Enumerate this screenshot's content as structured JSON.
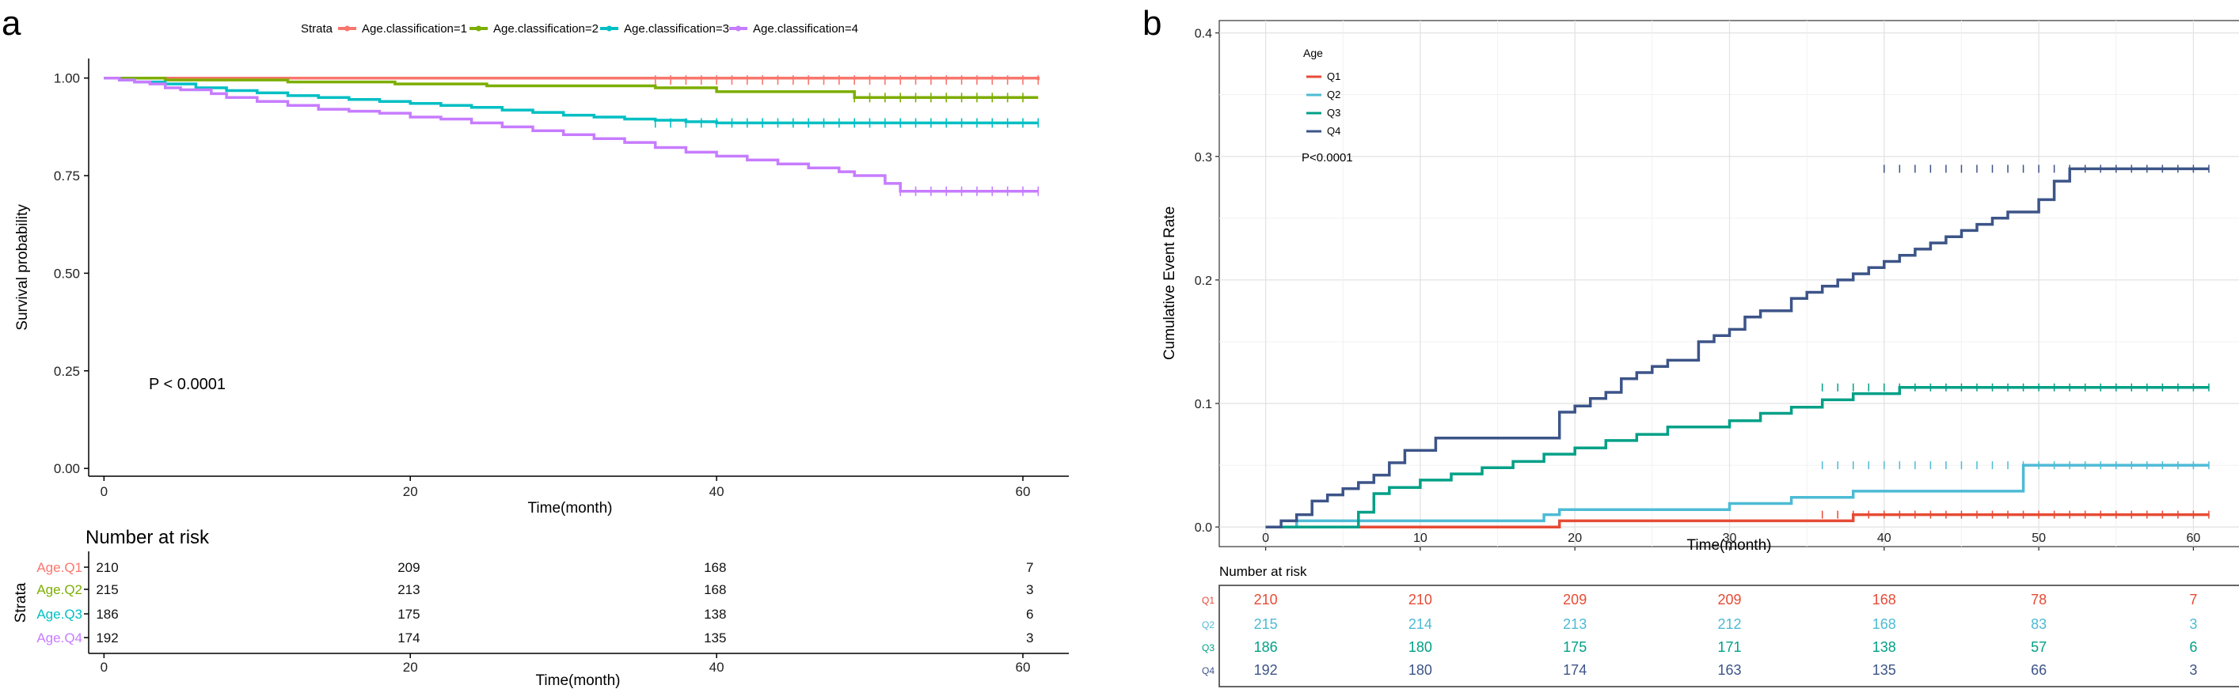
{
  "panels": [
    {
      "id": "a",
      "panel_label": "a",
      "legend_title": "Strata",
      "pvalue": "P < 0.0001",
      "xlabel": "Time(month)",
      "ylabel": "Survival probability",
      "risk_title": "Number at risk",
      "risk_xlabel": "Time(month)",
      "risk_ylabel": "Strata",
      "colors": [
        "#F8766D",
        "#7CAE00",
        "#00BFC4",
        "#C77CFF"
      ]
    },
    {
      "id": "b",
      "panel_label": "b",
      "legend_title": "Age",
      "pvalue": "P<0.0001",
      "xlabel": "Time(month)",
      "ylabel": "Cumulative Event Rate",
      "risk_title": "Number at risk",
      "colors": [
        "#E64B35",
        "#4DBBD5",
        "#00A087",
        "#3C5488"
      ]
    }
  ],
  "chart_data": [
    {
      "type": "line",
      "subtype": "kaplan-meier-survival",
      "title": "",
      "xlabel": "Time(month)",
      "ylabel": "Survival probability",
      "xlim": [
        -1,
        63
      ],
      "ylim": [
        -0.02,
        1.05
      ],
      "x_ticks": [
        0,
        20,
        40,
        60
      ],
      "y_ticks": [
        0.0,
        0.25,
        0.5,
        0.75,
        1.0
      ],
      "y_tick_labels": [
        "0.00",
        "0.25",
        "0.50",
        "0.75",
        "1.00"
      ],
      "legend_entries": [
        "Age.classification=1",
        "Age.classification=2",
        "Age.classification=3",
        "Age.classification=4"
      ],
      "legend_position": "top",
      "annotation": "P < 0.0001",
      "series": [
        {
          "name": "Age.classification=1",
          "t": [
            0,
            61
          ],
          "v": [
            1.0,
            0.995
          ],
          "censor_from": 36,
          "censor_to": 61
        },
        {
          "name": "Age.classification=2",
          "t": [
            0,
            4,
            12,
            19,
            25,
            36,
            40,
            49,
            61
          ],
          "v": [
            1.0,
            0.995,
            0.99,
            0.985,
            0.98,
            0.975,
            0.965,
            0.95,
            0.95
          ],
          "censor_from": 49,
          "censor_to": 60
        },
        {
          "name": "Age.classification=3",
          "t": [
            0,
            1,
            2,
            4,
            6,
            8,
            10,
            12,
            14,
            16,
            18,
            20,
            22,
            24,
            26,
            28,
            30,
            32,
            34,
            36,
            38,
            40,
            61
          ],
          "v": [
            1.0,
            0.995,
            0.99,
            0.985,
            0.975,
            0.968,
            0.962,
            0.955,
            0.95,
            0.945,
            0.94,
            0.935,
            0.93,
            0.925,
            0.918,
            0.912,
            0.905,
            0.9,
            0.895,
            0.892,
            0.888,
            0.885,
            0.885
          ],
          "censor_from": 36,
          "censor_to": 61
        },
        {
          "name": "Age.classification=4",
          "t": [
            0,
            1,
            2,
            3,
            4,
            5,
            7,
            8,
            10,
            12,
            14,
            16,
            18,
            20,
            22,
            24,
            26,
            28,
            30,
            32,
            34,
            36,
            38,
            40,
            42,
            44,
            46,
            48,
            49,
            51,
            52,
            61
          ],
          "v": [
            1.0,
            0.995,
            0.99,
            0.985,
            0.975,
            0.97,
            0.96,
            0.95,
            0.94,
            0.93,
            0.92,
            0.915,
            0.91,
            0.9,
            0.895,
            0.885,
            0.875,
            0.865,
            0.855,
            0.845,
            0.835,
            0.822,
            0.81,
            0.8,
            0.79,
            0.78,
            0.77,
            0.76,
            0.75,
            0.73,
            0.71,
            0.71
          ],
          "censor_from": 52,
          "censor_to": 61
        }
      ],
      "risk_table": {
        "title": "Number at risk",
        "xlabel": "Time(month)",
        "ylabel": "Strata",
        "times": [
          0,
          20,
          40,
          60
        ],
        "groups": [
          "Age.Q1",
          "Age.Q2",
          "Age.Q3",
          "Age.Q4"
        ],
        "values": [
          [
            "210",
            "209",
            "168",
            "7"
          ],
          [
            "215",
            "213",
            "168",
            "3"
          ],
          [
            "186",
            "175",
            "138",
            "6"
          ],
          [
            "192",
            "174",
            "135",
            "3"
          ]
        ]
      }
    },
    {
      "type": "line",
      "subtype": "cumulative-event-rate",
      "title": "",
      "xlabel": "Time(month)",
      "ylabel": "Cumulative Event Rate",
      "xlim": [
        -3,
        63
      ],
      "ylim": [
        -0.005,
        0.41
      ],
      "x_ticks": [
        0,
        10,
        20,
        30,
        40,
        50,
        60
      ],
      "y_ticks": [
        0.0,
        0.1,
        0.2,
        0.3,
        0.4
      ],
      "y_tick_labels": [
        "0.0",
        "0.1",
        "0.2",
        "0.3",
        "0.4"
      ],
      "legend_title": "Age",
      "legend_entries": [
        "Q1",
        "Q2",
        "Q3",
        "Q4"
      ],
      "legend_position": "top-left",
      "annotation": "P<0.0001",
      "series": [
        {
          "name": "Q1",
          "t": [
            0,
            5,
            19,
            38,
            61
          ],
          "v": [
            0.0,
            0.0,
            0.005,
            0.01,
            0.01
          ],
          "censor_from": 36,
          "censor_to": 61
        },
        {
          "name": "Q2",
          "t": [
            0,
            2,
            4,
            10,
            18,
            19,
            20,
            24,
            30,
            34,
            36,
            38,
            40,
            49,
            61
          ],
          "v": [
            0.0,
            0.005,
            0.005,
            0.005,
            0.01,
            0.014,
            0.014,
            0.014,
            0.019,
            0.024,
            0.024,
            0.029,
            0.029,
            0.05,
            0.05
          ],
          "censor_from": 36,
          "censor_to": 61
        },
        {
          "name": "Q3",
          "t": [
            0,
            6,
            7,
            8,
            10,
            12,
            14,
            16,
            18,
            20,
            22,
            24,
            26,
            28,
            30,
            32,
            34,
            36,
            38,
            41,
            61
          ],
          "v": [
            0.0,
            0.012,
            0.027,
            0.032,
            0.038,
            0.043,
            0.048,
            0.053,
            0.059,
            0.064,
            0.07,
            0.075,
            0.081,
            0.081,
            0.086,
            0.092,
            0.097,
            0.103,
            0.108,
            0.113,
            0.113
          ],
          "censor_from": 36,
          "censor_to": 61
        },
        {
          "name": "Q4",
          "t": [
            0,
            1,
            2,
            3,
            4,
            5,
            6,
            7,
            8,
            9,
            10,
            11,
            19,
            20,
            21,
            22,
            23,
            24,
            25,
            26,
            28,
            29,
            30,
            31,
            32,
            34,
            35,
            36,
            37,
            38,
            39,
            40,
            41,
            42,
            43,
            44,
            45,
            46,
            47,
            48,
            50,
            51,
            52,
            61
          ],
          "v": [
            0.0,
            0.005,
            0.01,
            0.021,
            0.026,
            0.031,
            0.036,
            0.042,
            0.052,
            0.062,
            0.062,
            0.072,
            0.093,
            0.098,
            0.104,
            0.109,
            0.12,
            0.125,
            0.13,
            0.135,
            0.15,
            0.155,
            0.16,
            0.17,
            0.175,
            0.185,
            0.19,
            0.195,
            0.2,
            0.205,
            0.21,
            0.215,
            0.22,
            0.225,
            0.23,
            0.235,
            0.24,
            0.245,
            0.25,
            0.255,
            0.265,
            0.28,
            0.29,
            0.29
          ],
          "censor_from": 40,
          "censor_to": 61
        }
      ],
      "risk_table": {
        "title": "Number at risk",
        "times": [
          0,
          10,
          20,
          30,
          40,
          50,
          60
        ],
        "groups": [
          "Q1",
          "Q2",
          "Q3",
          "Q4"
        ],
        "values": [
          [
            "210",
            "210",
            "209",
            "209",
            "168",
            "78",
            "7"
          ],
          [
            "215",
            "214",
            "213",
            "212",
            "168",
            "83",
            "3"
          ],
          [
            "186",
            "180",
            "175",
            "171",
            "138",
            "57",
            "6"
          ],
          [
            "192",
            "180",
            "174",
            "163",
            "135",
            "66",
            "3"
          ]
        ]
      }
    }
  ]
}
